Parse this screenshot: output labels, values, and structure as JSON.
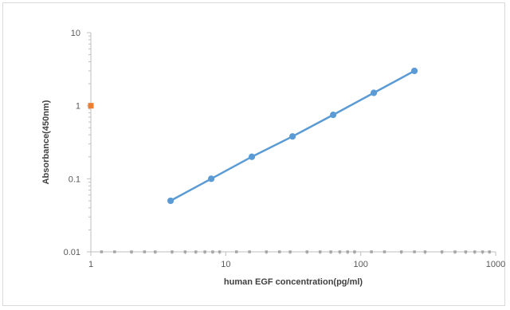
{
  "chart_data": {
    "type": "scatter",
    "title": "",
    "xlabel": "human EGF concentration(pg/ml)",
    "ylabel": "Absorbance(450nm)",
    "x_scale": "log",
    "y_scale": "log",
    "xlim": [
      1,
      1000
    ],
    "ylim": [
      0.01,
      10
    ],
    "x_ticks": [
      "1",
      "10",
      "100",
      "1000"
    ],
    "y_ticks": [
      "0.01",
      "0.1",
      "1",
      "10"
    ],
    "grid": false,
    "legend": "none",
    "series": [
      {
        "style": "line-markers",
        "color": "#5B9BD5",
        "x": [
          3.9,
          7.8,
          15.6,
          31.25,
          62.5,
          125,
          250
        ],
        "y": [
          0.05,
          0.1,
          0.2,
          0.38,
          0.75,
          1.5,
          3.0
        ]
      },
      {
        "style": "marker",
        "marker": "square",
        "color": "#ED7D31",
        "x": [
          1
        ],
        "y": [
          1
        ]
      },
      {
        "style": "marker",
        "marker": "square",
        "color": "#A5A5A5",
        "x": [
          1.2,
          1.5,
          2,
          2.5,
          3,
          4,
          5,
          6,
          7,
          8,
          9,
          12,
          15,
          20,
          25,
          30,
          40,
          50,
          60,
          70,
          80,
          90,
          120,
          150,
          200,
          250,
          300,
          400,
          500,
          600,
          700,
          800,
          900
        ],
        "y": [
          0.01,
          0.01,
          0.01,
          0.01,
          0.01,
          0.01,
          0.01,
          0.01,
          0.01,
          0.01,
          0.01,
          0.01,
          0.01,
          0.01,
          0.01,
          0.01,
          0.01,
          0.01,
          0.01,
          0.01,
          0.01,
          0.01,
          0.01,
          0.01,
          0.01,
          0.01,
          0.01,
          0.01,
          0.01,
          0.01,
          0.01,
          0.01,
          0.01
        ]
      }
    ]
  }
}
